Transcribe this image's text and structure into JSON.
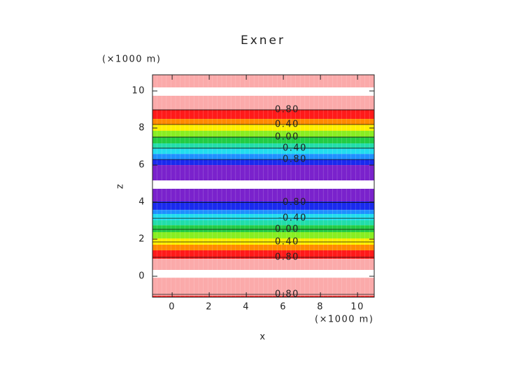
{
  "chart_data": {
    "type": "contour",
    "title": "Exner",
    "x_label": "x",
    "y_label": "z",
    "x_unit": "(×1000 m)",
    "y_unit": "(×1000 m)",
    "xlim": [
      -1.06,
      10.9
    ],
    "ylim": [
      -1.13,
      10.87
    ],
    "xticks": [
      0,
      2,
      4,
      6,
      8,
      10
    ],
    "yticks": [
      0,
      2,
      4,
      6,
      8,
      10
    ],
    "bands": [
      {
        "z": [
          10.19,
          10.87
        ],
        "color": "#fbaaaa"
      },
      {
        "z": [
          9.74,
          10.19
        ],
        "color": "#ffffff"
      },
      {
        "z": [
          8.98,
          9.74
        ],
        "color": "#fbaaaa"
      },
      {
        "z": [
          8.49,
          8.98
        ],
        "color": "#ff1a1a"
      },
      {
        "z": [
          8.19,
          8.49
        ],
        "color": "#ff8a00"
      },
      {
        "z": [
          7.85,
          8.19
        ],
        "color": "#ffee00"
      },
      {
        "z": [
          7.51,
          7.85
        ],
        "color": "#88ee22"
      },
      {
        "z": [
          7.17,
          7.51
        ],
        "color": "#22cc44"
      },
      {
        "z": [
          6.91,
          7.17
        ],
        "color": "#22ddaa"
      },
      {
        "z": [
          6.6,
          6.91
        ],
        "color": "#22ddee"
      },
      {
        "z": [
          6.3,
          6.6
        ],
        "color": "#1e90ff"
      },
      {
        "z": [
          6.0,
          6.3
        ],
        "color": "#1a2aee"
      },
      {
        "z": [
          5.17,
          6.0
        ],
        "color": "#7a22cc"
      },
      {
        "z": [
          4.72,
          5.17
        ],
        "color": "#ffffff"
      },
      {
        "z": [
          4.04,
          4.72
        ],
        "color": "#7a22cc"
      },
      {
        "z": [
          3.58,
          4.04
        ],
        "color": "#1a2aee"
      },
      {
        "z": [
          3.36,
          3.58
        ],
        "color": "#1e90ff"
      },
      {
        "z": [
          3.02,
          3.36
        ],
        "color": "#22ddee"
      },
      {
        "z": [
          2.75,
          3.02
        ],
        "color": "#22ddaa"
      },
      {
        "z": [
          2.38,
          2.75
        ],
        "color": "#22cc44"
      },
      {
        "z": [
          2.04,
          2.38
        ],
        "color": "#88ee22"
      },
      {
        "z": [
          1.7,
          2.04
        ],
        "color": "#ffee00"
      },
      {
        "z": [
          1.4,
          1.7
        ],
        "color": "#ff8a00"
      },
      {
        "z": [
          0.94,
          1.4
        ],
        "color": "#ff1a1a"
      },
      {
        "z": [
          0.34,
          0.94
        ],
        "color": "#fbaaaa"
      },
      {
        "z": [
          -0.08,
          0.34
        ],
        "color": "#ffffff"
      },
      {
        "z": [
          -1.06,
          -0.08
        ],
        "color": "#fbaaaa"
      },
      {
        "z": [
          -1.13,
          -1.06
        ],
        "color": "#ff1a1a"
      }
    ],
    "contours": [
      {
        "label": "0.80",
        "x": 6.2,
        "z": 8.98
      },
      {
        "label": "0.40",
        "x": 6.2,
        "z": 8.19
      },
      {
        "label": "0.00",
        "x": 6.2,
        "z": 7.51
      },
      {
        "label": "-0.40",
        "x": 6.5,
        "z": 6.91
      },
      {
        "label": "-0.80",
        "x": 6.5,
        "z": 6.3
      },
      {
        "label": "-0.80",
        "x": 6.5,
        "z": 3.98
      },
      {
        "label": "-0.40",
        "x": 6.5,
        "z": 3.13
      },
      {
        "label": "0.00",
        "x": 6.2,
        "z": 2.53
      },
      {
        "label": "0.40",
        "x": 6.2,
        "z": 1.85
      },
      {
        "label": "0.80",
        "x": 6.2,
        "z": 1.02
      },
      {
        "label": "0.80",
        "x": 6.2,
        "z": -0.98
      }
    ]
  }
}
